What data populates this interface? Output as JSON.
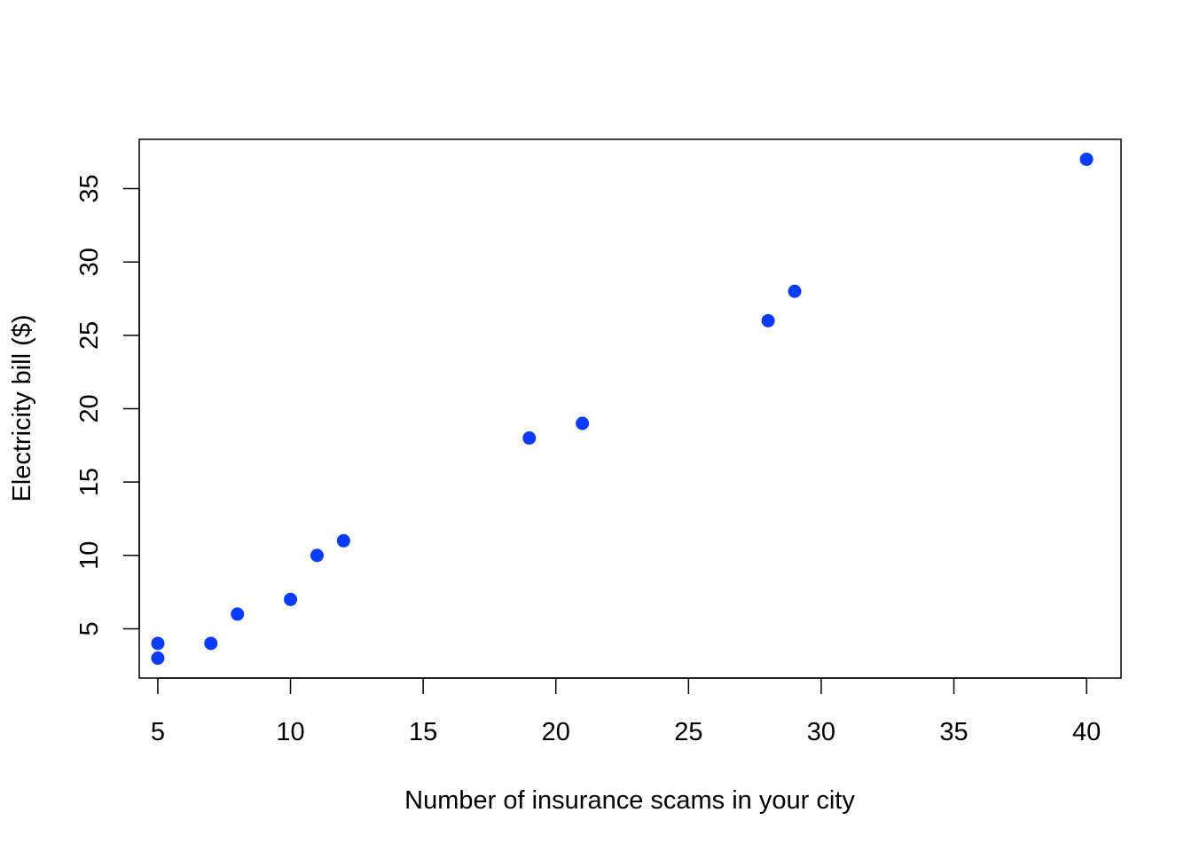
{
  "chart_data": {
    "type": "scatter",
    "title": "",
    "xlabel": "Number of insurance scams in your city",
    "ylabel": "Electricity bill ($)",
    "xlim": [
      4.3,
      41.3
    ],
    "ylim": [
      1.64,
      38.36
    ],
    "x_ticks": [
      5,
      10,
      15,
      20,
      25,
      30,
      35,
      40
    ],
    "y_ticks": [
      5,
      10,
      15,
      20,
      25,
      30,
      35
    ],
    "grid": false,
    "legend": "none",
    "point_color": "#0a3cff",
    "points": [
      {
        "x": 5,
        "y": 3
      },
      {
        "x": 5,
        "y": 4
      },
      {
        "x": 7,
        "y": 4
      },
      {
        "x": 8,
        "y": 6
      },
      {
        "x": 10,
        "y": 7
      },
      {
        "x": 11,
        "y": 10
      },
      {
        "x": 12,
        "y": 11
      },
      {
        "x": 19,
        "y": 18
      },
      {
        "x": 21,
        "y": 19
      },
      {
        "x": 28,
        "y": 26
      },
      {
        "x": 29,
        "y": 28
      },
      {
        "x": 40,
        "y": 37
      }
    ]
  }
}
